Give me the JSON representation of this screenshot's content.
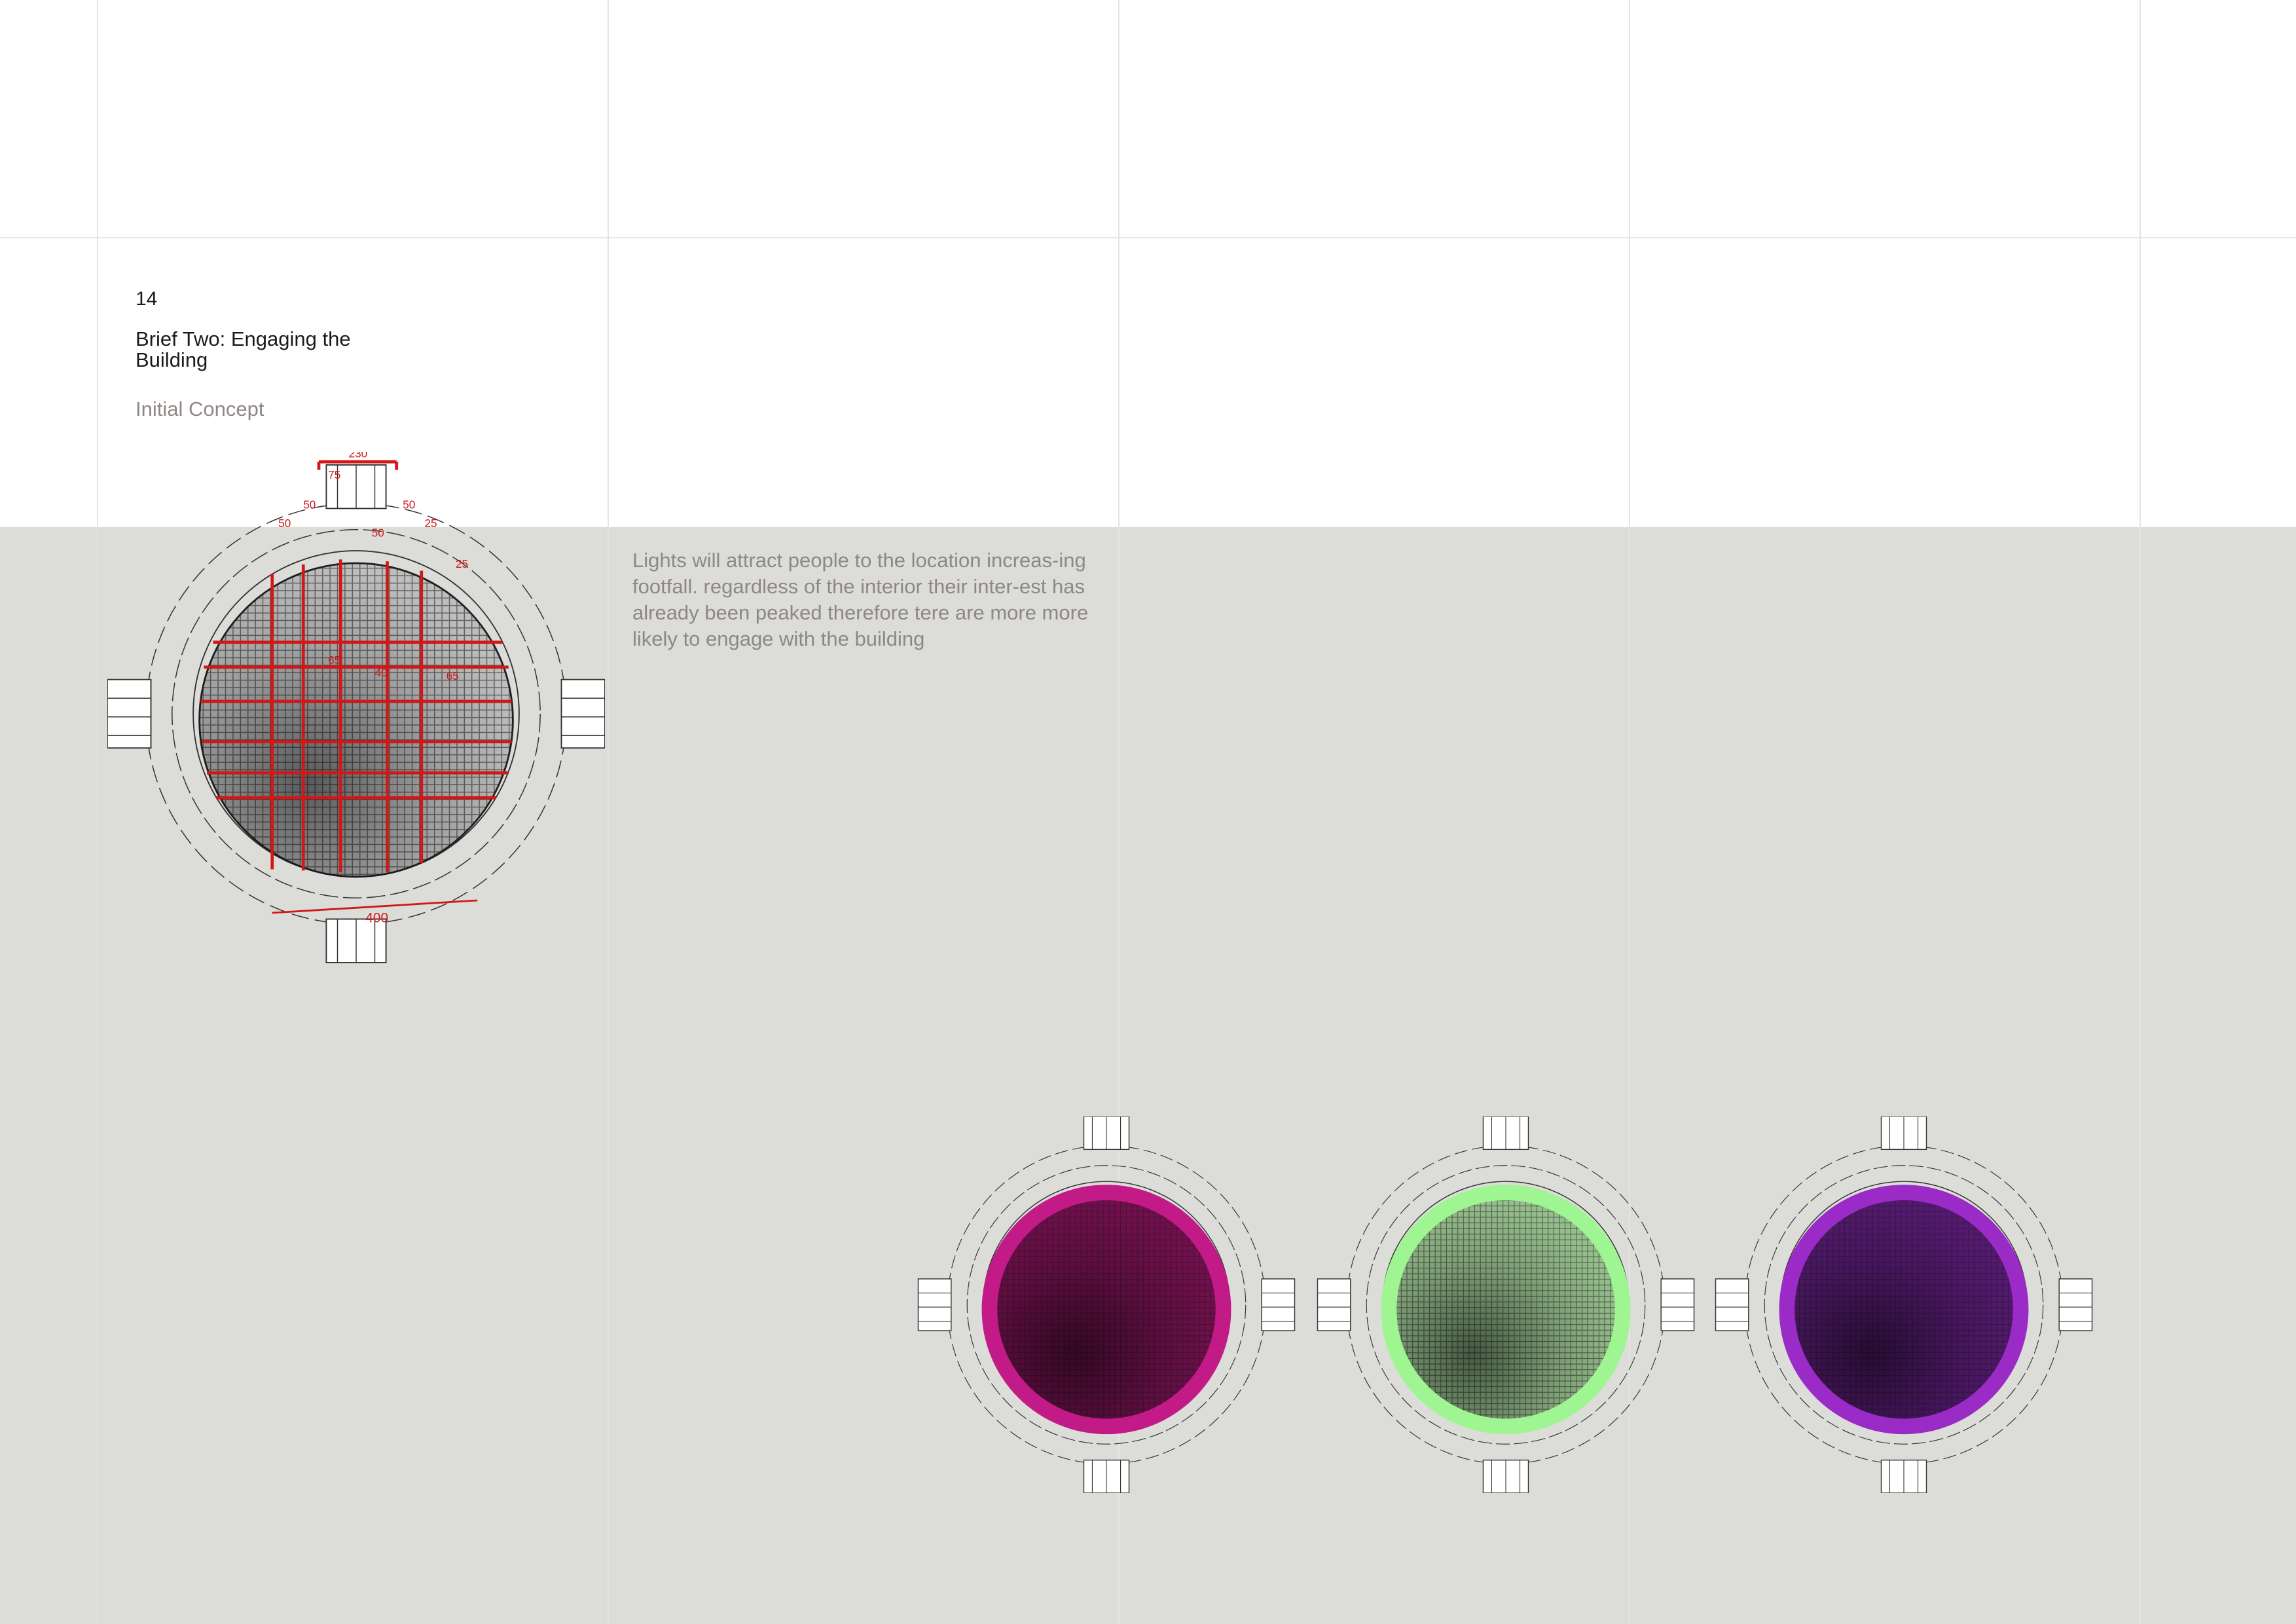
{
  "page": {
    "number": "14",
    "title": "Brief Two: Engaging the Building",
    "subtitle": "Initial Concept"
  },
  "concept_text": "Lights will attract people to the location increas-ing footfall. regardless of the interior their inter-est has already been peaked therefore tere are more more likely to engage with the building",
  "annotations": {
    "top_width": "230",
    "segment_a": "75",
    "segment_b": "50",
    "segment_c": "50",
    "segment_d": "50",
    "side_a": "50",
    "side_b": "25",
    "side_c": "25",
    "inner_a": "65",
    "inner_b": "40",
    "inner_c": "65",
    "bottom_span": "400"
  },
  "colors": {
    "background_band": "#dcddd8",
    "annotation_red": "#d01818",
    "light_magenta": "#c21a86",
    "light_green": "#9ef592",
    "light_purple": "#9a2bc6"
  },
  "lighting_variants": [
    "magenta",
    "green",
    "purple"
  ]
}
